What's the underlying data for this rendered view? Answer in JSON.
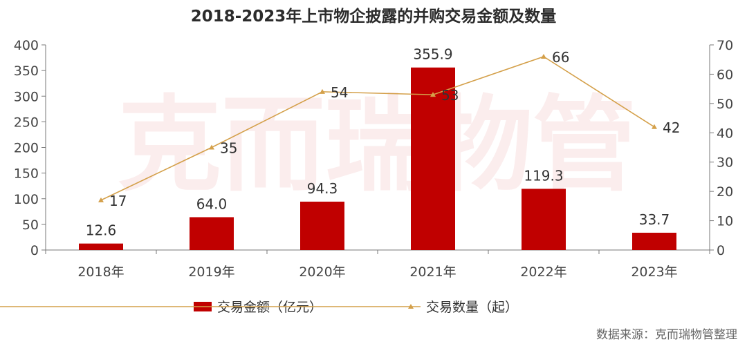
{
  "chart_data": {
    "type": "bar",
    "title": "2018-2023年上市物企披露的并购交易金额及数量",
    "categories": [
      "2018年",
      "2019年",
      "2020年",
      "2021年",
      "2022年",
      "2023年"
    ],
    "series": [
      {
        "name": "交易金额（亿元）",
        "type": "bar",
        "axis": "left",
        "values": [
          12.6,
          64.0,
          94.3,
          355.9,
          119.3,
          33.7
        ],
        "labels": [
          "12.6",
          "64.0",
          "94.3",
          "355.9",
          "119.3",
          "33.7"
        ],
        "color": "#c00000"
      },
      {
        "name": "交易数量（起）",
        "type": "line",
        "axis": "right",
        "values": [
          17,
          35,
          54,
          53,
          66,
          42
        ],
        "labels": [
          "17",
          "35",
          "54",
          "53",
          "66",
          "42"
        ],
        "color": "#d4a04a"
      }
    ],
    "y_left": {
      "range": [
        0,
        400
      ],
      "ticks": [
        "0",
        "50",
        "100",
        "150",
        "200",
        "250",
        "300",
        "350",
        "400"
      ]
    },
    "y_right": {
      "range": [
        0,
        70
      ],
      "ticks": [
        "0",
        "10",
        "20",
        "30",
        "40",
        "50",
        "60",
        "70"
      ]
    },
    "grid": false,
    "legend_position": "bottom"
  },
  "watermark": "克而瑞物管",
  "source": "数据来源：克而瑞物管整理"
}
